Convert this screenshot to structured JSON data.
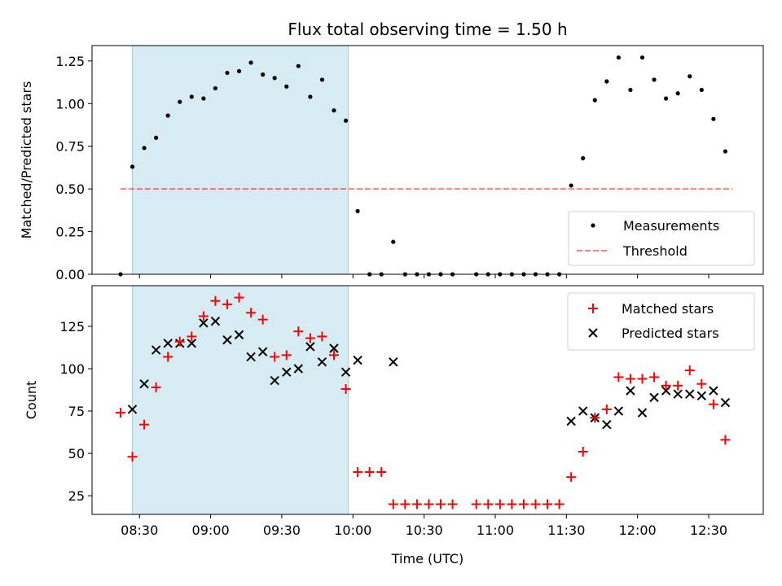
{
  "title": "Flux total observing time = 1.50 h",
  "shaded_window": [
    "08:27",
    "09:58"
  ],
  "chart_data": [
    {
      "type": "scatter",
      "name": "ratio-panel",
      "ylabel": "Matched/Predicted stars",
      "xlabel": "",
      "ylim": [
        0,
        1.34
      ],
      "yticks": [
        "0.00",
        "0.25",
        "0.50",
        "0.75",
        "1.00",
        "1.25"
      ],
      "threshold": 0.5,
      "threshold_range": [
        "08:22",
        "12:40"
      ],
      "legend": {
        "placement": "lower-right",
        "entries": [
          "Measurements",
          "Threshold"
        ]
      },
      "series": [
        {
          "name": "Measurements",
          "x": [
            "08:22",
            "08:27",
            "08:32",
            "08:37",
            "08:42",
            "08:47",
            "08:52",
            "08:57",
            "09:02",
            "09:07",
            "09:12",
            "09:17",
            "09:22",
            "09:27",
            "09:32",
            "09:37",
            "09:42",
            "09:47",
            "09:52",
            "09:57",
            "10:02",
            "10:07",
            "10:12",
            "10:17",
            "10:22",
            "10:27",
            "10:32",
            "10:37",
            "10:42",
            "10:52",
            "10:57",
            "11:02",
            "11:07",
            "11:12",
            "11:17",
            "11:22",
            "11:27",
            "11:32",
            "11:37",
            "11:42",
            "11:47",
            "11:52",
            "11:57",
            "12:02",
            "12:07",
            "12:12",
            "12:17",
            "12:22",
            "12:27",
            "12:32",
            "12:37"
          ],
          "y": [
            0.0,
            0.63,
            0.74,
            0.8,
            0.93,
            1.01,
            1.04,
            1.03,
            1.09,
            1.18,
            1.19,
            1.24,
            1.17,
            1.15,
            1.1,
            1.22,
            1.04,
            1.14,
            0.96,
            0.9,
            0.37,
            0.0,
            0.0,
            0.19,
            0.0,
            0.0,
            0.0,
            0.0,
            0.0,
            0.0,
            0.0,
            0.0,
            0.0,
            0.0,
            0.0,
            0.0,
            0.0,
            0.52,
            0.68,
            1.02,
            1.13,
            1.27,
            1.08,
            1.27,
            1.14,
            1.03,
            1.06,
            1.16,
            1.08,
            0.91,
            0.72
          ]
        }
      ]
    },
    {
      "type": "scatter",
      "name": "count-panel",
      "ylabel": "Count",
      "xlabel": "Time (UTC)",
      "ylim": [
        14,
        149
      ],
      "yticks": [
        "25",
        "50",
        "75",
        "100",
        "125"
      ],
      "xticks": [
        "08:30",
        "09:00",
        "09:30",
        "10:00",
        "10:30",
        "11:00",
        "11:30",
        "12:00",
        "12:30"
      ],
      "xlim": [
        "08:10",
        "12:53"
      ],
      "legend": {
        "placement": "upper-right",
        "entries": [
          "Matched stars",
          "Predicted stars"
        ]
      },
      "series": [
        {
          "name": "Matched stars",
          "x": [
            "08:22",
            "08:27",
            "08:32",
            "08:37",
            "08:42",
            "08:47",
            "08:52",
            "08:57",
            "09:02",
            "09:07",
            "09:12",
            "09:17",
            "09:22",
            "09:27",
            "09:32",
            "09:37",
            "09:42",
            "09:47",
            "09:52",
            "09:57",
            "10:02",
            "10:07",
            "10:12",
            "10:17",
            "10:22",
            "10:27",
            "10:32",
            "10:37",
            "10:42",
            "10:52",
            "10:57",
            "11:02",
            "11:07",
            "11:12",
            "11:17",
            "11:22",
            "11:27",
            "11:32",
            "11:37",
            "11:42",
            "11:47",
            "11:52",
            "11:57",
            "12:02",
            "12:07",
            "12:12",
            "12:17",
            "12:22",
            "12:27",
            "12:32",
            "12:37"
          ],
          "y": [
            74,
            48,
            67,
            89,
            107,
            116,
            119,
            131,
            140,
            138,
            142,
            133,
            129,
            107,
            108,
            122,
            118,
            119,
            108,
            88,
            39,
            39,
            39,
            20,
            20,
            20,
            20,
            20,
            20,
            20,
            20,
            20,
            20,
            20,
            20,
            20,
            20,
            36,
            51,
            71,
            76,
            95,
            94,
            94,
            95,
            90,
            90,
            99,
            91,
            79,
            58
          ]
        },
        {
          "name": "Predicted stars",
          "x": [
            "08:27",
            "08:32",
            "08:37",
            "08:42",
            "08:47",
            "08:52",
            "08:57",
            "09:02",
            "09:07",
            "09:12",
            "09:17",
            "09:22",
            "09:27",
            "09:32",
            "09:37",
            "09:42",
            "09:47",
            "09:52",
            "09:57",
            "10:02",
            "10:17",
            "11:32",
            "11:37",
            "11:42",
            "11:47",
            "11:52",
            "11:57",
            "12:02",
            "12:07",
            "12:12",
            "12:17",
            "12:22",
            "12:27",
            "12:32",
            "12:37"
          ],
          "y": [
            76,
            91,
            111,
            115,
            115,
            115,
            127,
            128,
            117,
            120,
            107,
            110,
            93,
            98,
            100,
            113,
            104,
            112,
            98,
            105,
            104,
            69,
            75,
            71,
            67,
            75,
            87,
            74,
            83,
            87,
            85,
            85,
            84,
            87,
            80
          ]
        }
      ]
    }
  ]
}
